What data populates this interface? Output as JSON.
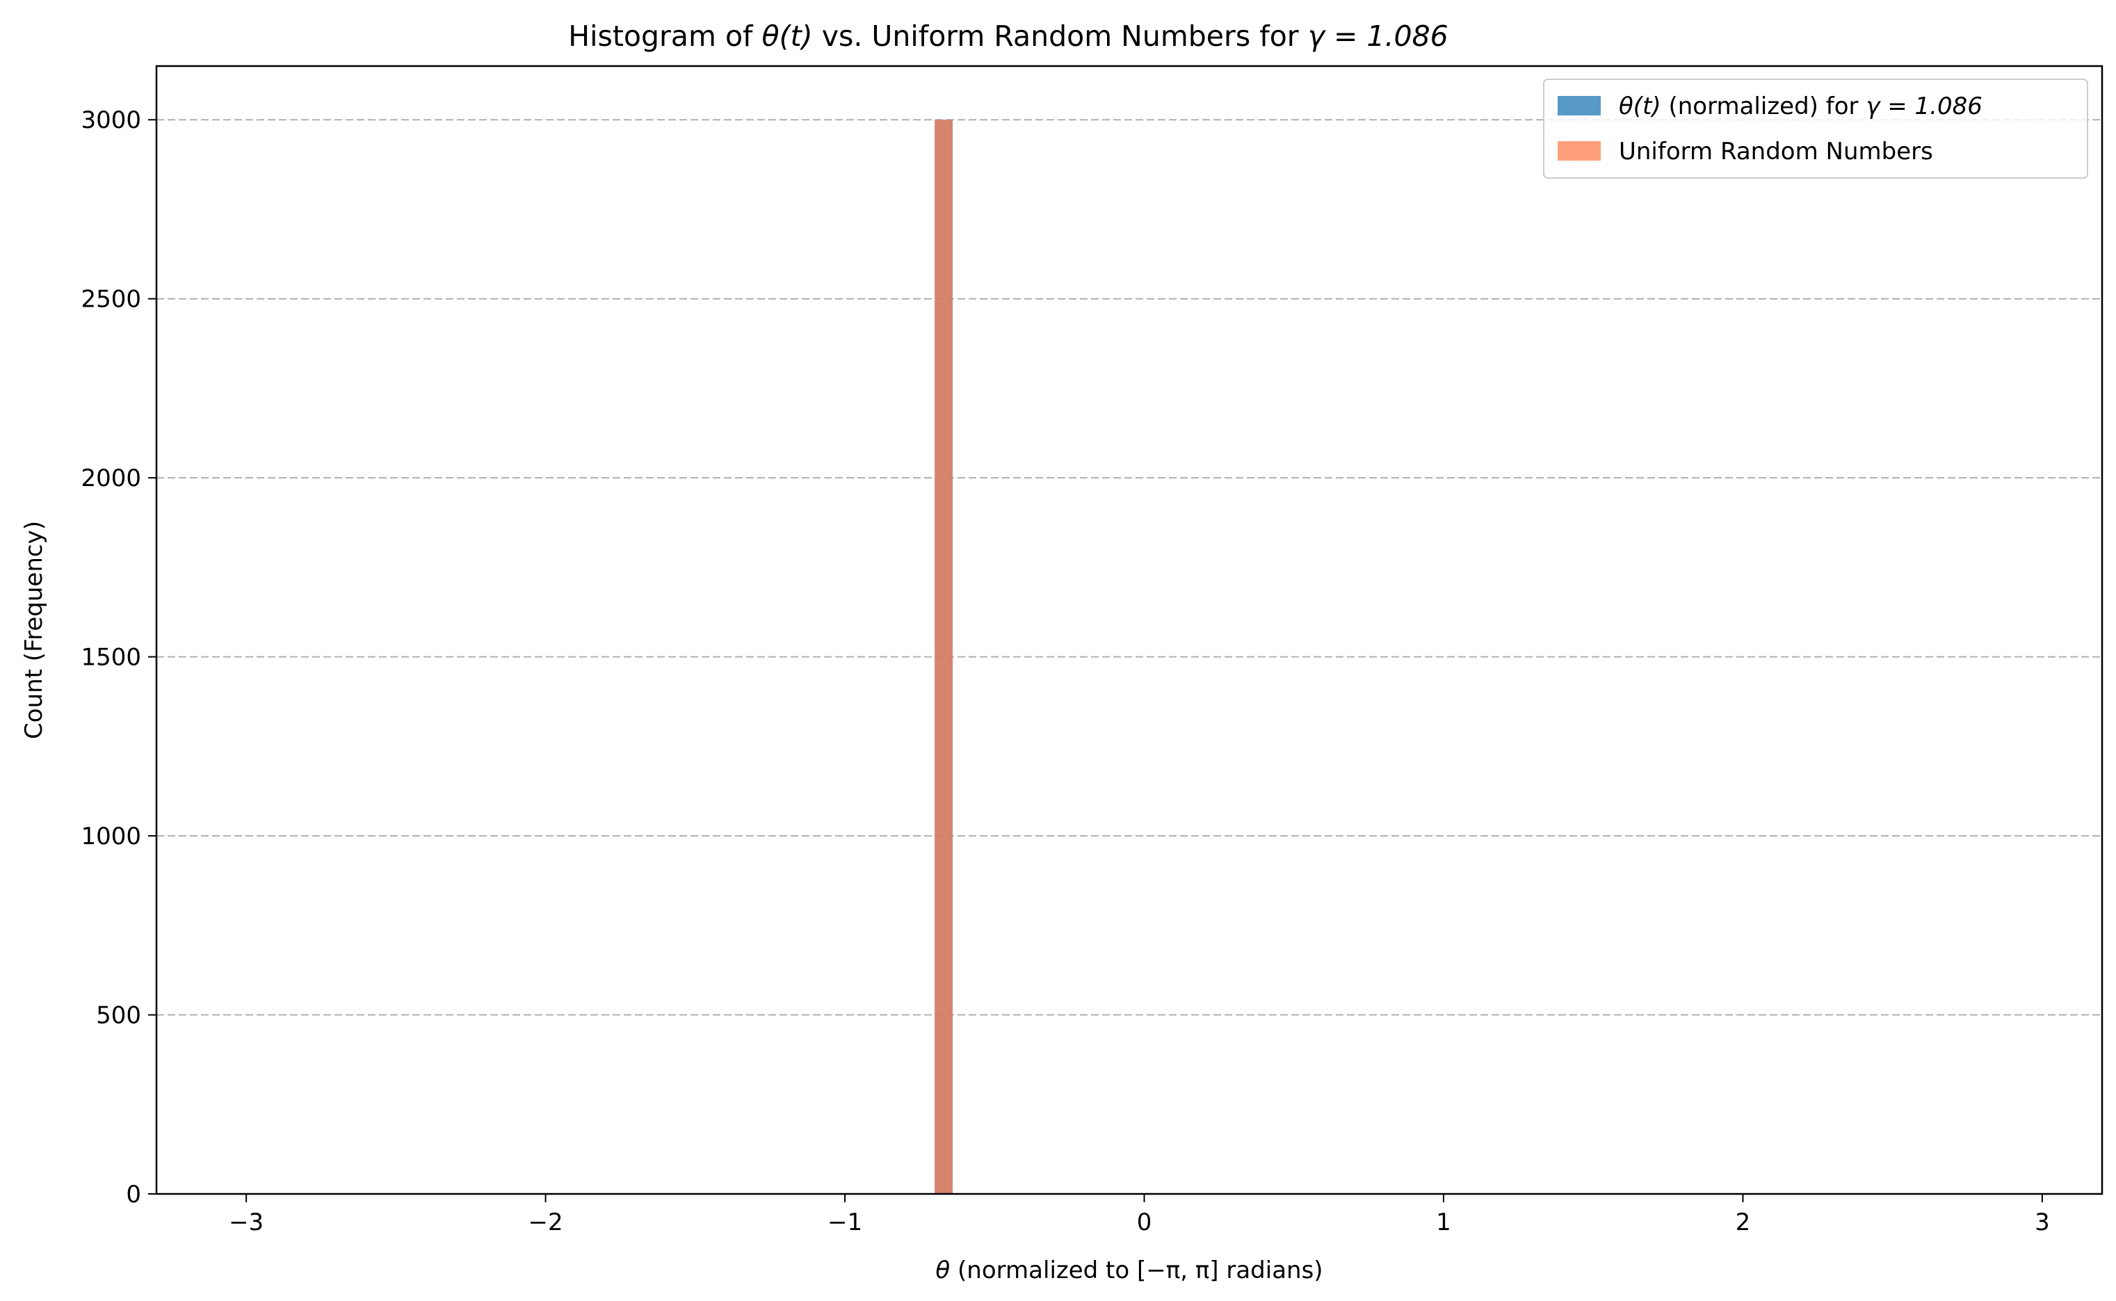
{
  "chart_data": {
    "type": "bar",
    "title": {
      "prefix": "Histogram of ",
      "theta_t": "θ(t)",
      "middle": " vs. Uniform Random Numbers for ",
      "gamma_expr": "γ = 1.086"
    },
    "xlabel": {
      "theta": "θ",
      "rest": " (normalized to [−π, π] radians)"
    },
    "ylabel": "Count (Frequency)",
    "xlim": [
      -3.3,
      3.2
    ],
    "ylim": [
      0,
      3150
    ],
    "x_ticks": [
      -3,
      -2,
      -1,
      0,
      1,
      2,
      3
    ],
    "x_tick_labels": [
      "−3",
      "−2",
      "−1",
      "0",
      "1",
      "2",
      "3"
    ],
    "y_ticks": [
      0,
      500,
      1000,
      1500,
      2000,
      2500,
      3000
    ],
    "y_tick_labels": [
      "0",
      "500",
      "1000",
      "1500",
      "2000",
      "2500",
      "3000"
    ],
    "grid": "y-dashed",
    "legend_position": "top-right",
    "series": [
      {
        "name": "θ(t) (normalized) for γ = 1.086",
        "name_math": "θ(t)",
        "name_rest": " (normalized) for ",
        "name_gamma": "γ = 1.086",
        "color": "#1f77b4",
        "opacity": 0.75,
        "bins": [
          {
            "x_start": -0.7,
            "x_end": -0.64,
            "count": 3000
          }
        ]
      },
      {
        "name": "Uniform Random Numbers",
        "color": "#ff7f50",
        "opacity": 0.75,
        "bins": [
          {
            "x_start": -0.7,
            "x_end": -0.64,
            "count": 3000
          }
        ]
      }
    ]
  }
}
